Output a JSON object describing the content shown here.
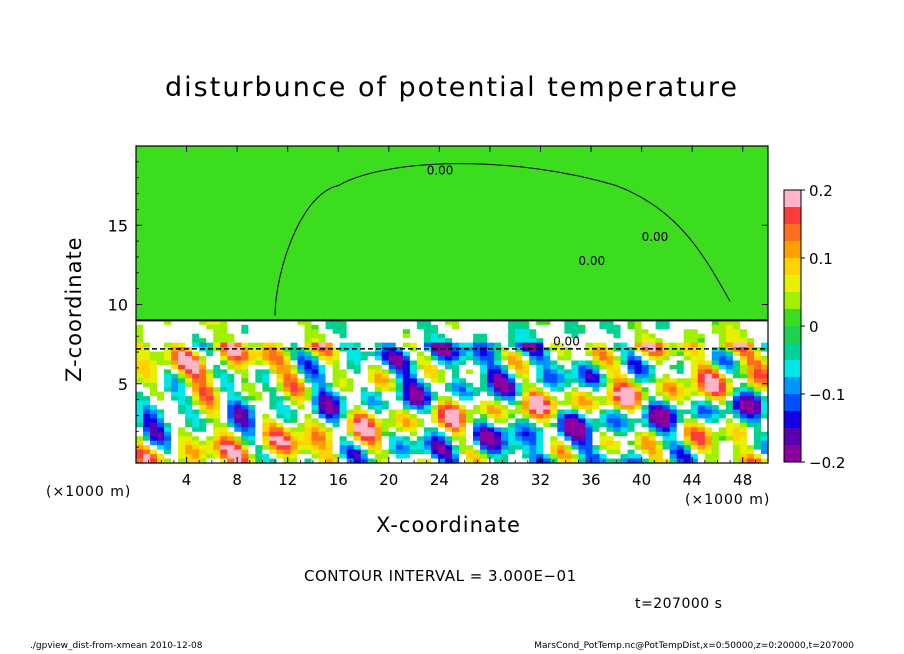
{
  "chart_data": {
    "type": "heatmap",
    "title": "disturbunce of potential temperature",
    "xlabel": "X-coordinate",
    "ylabel": "Z-coordinate",
    "x_unit": "(×1000 m)",
    "x_ticks": [
      4,
      8,
      12,
      16,
      20,
      24,
      28,
      32,
      36,
      40,
      44,
      48
    ],
    "y_ticks": [
      5,
      10,
      15
    ],
    "xlim": [
      0,
      50
    ],
    "ylim": [
      0,
      20
    ],
    "colorbar": {
      "ticks": [
        "0.2",
        "0.1",
        "0",
        "−0.1",
        "−0.2"
      ],
      "range": [
        -0.2,
        0.2
      ],
      "colors": [
        "#ffb4c8",
        "#ff3c3c",
        "#ff6e1e",
        "#ffa000",
        "#ffd200",
        "#e6f000",
        "#a0f000",
        "#3cdc1e",
        "#1ed250",
        "#00d296",
        "#00e6e6",
        "#0096ff",
        "#0050ff",
        "#1400e6",
        "#5a00b4",
        "#8c00a0"
      ]
    },
    "contour_labels": [
      "0.00",
      "0.00",
      "0.00",
      "0.00"
    ],
    "grid": false,
    "legend": "colorbar-right"
  },
  "annotations": {
    "contour_interval": "CONTOUR INTERVAL = 3.000E−01",
    "time": "t=207000 s",
    "footer_left": "./gpview_dist-from-xmean  2010-12-08",
    "footer_right": "MarsCond_PotTemp.nc@PotTempDist,x=0:50000,z=0:20000,t=207000"
  }
}
